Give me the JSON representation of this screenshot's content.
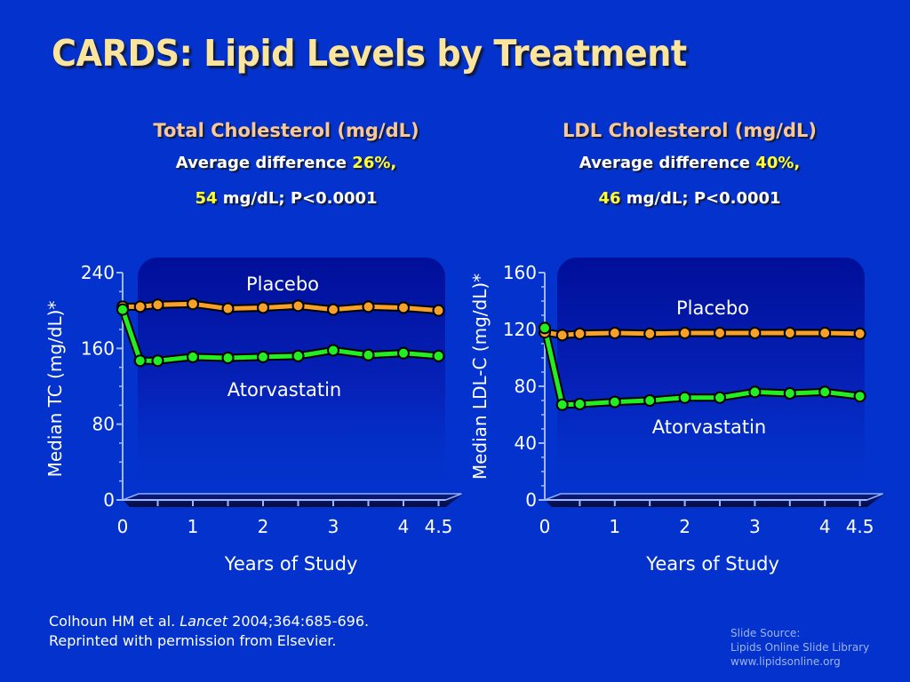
{
  "slide": {
    "title": "CARDS: Lipid Levels by Treatment",
    "citation": {
      "authors": "Colhoun HM et al.",
      "journal": "Lancet",
      "ref": "2004;364:685-696.",
      "line2": "Reprinted with permission from Elsevier."
    },
    "source": {
      "line1": "Slide Source:",
      "line2": "Lipids Online Slide Library",
      "line3": "www.lipidsonline.org"
    }
  },
  "panels": [
    {
      "heading": "Total Cholesterol (mg/dL)",
      "line1_prefix": "Average difference",
      "line1_value": "26%,",
      "line2_value": "54",
      "line2_suffix": "mg/dL; P<0.0001"
    },
    {
      "heading": "LDL Cholesterol (mg/dL)",
      "line1_prefix": "Average difference",
      "line1_value": "40%,",
      "line2_value": "46",
      "line2_suffix": "mg/dL; P<0.0001"
    }
  ],
  "colors": {
    "placebo": "#f7a12a",
    "atorvastatin": "#22ee22",
    "background": "#0333cc",
    "panel": "#0011aa"
  },
  "chart_data": [
    {
      "type": "line",
      "title": "Total Cholesterol (mg/dL)",
      "xlabel": "Years of Study",
      "ylabel": "Median TC (mg/dL)*",
      "ylim": [
        0,
        240
      ],
      "yticks": [
        0,
        80,
        160,
        240
      ],
      "xlim": [
        0,
        4.5
      ],
      "xticks": [
        0,
        1,
        2,
        3,
        4,
        4.5
      ],
      "x": [
        0,
        0.25,
        0.5,
        1,
        1.5,
        2,
        2.5,
        3,
        3.5,
        4,
        4.5
      ],
      "series": [
        {
          "name": "Placebo",
          "values": [
            204,
            204,
            206,
            207,
            202,
            203,
            205,
            201,
            204,
            203,
            200
          ]
        },
        {
          "name": "Atorvastatin",
          "values": [
            201,
            147,
            147,
            151,
            150,
            151,
            152,
            158,
            153,
            155,
            152
          ]
        }
      ],
      "series_labels": [
        "Placebo",
        "Atorvastatin"
      ],
      "grid": false
    },
    {
      "type": "line",
      "title": "LDL Cholesterol (mg/dL)",
      "xlabel": "Years of Study",
      "ylabel": "Median LDL-C (mg/dL)*",
      "ylim": [
        0,
        160
      ],
      "yticks": [
        0,
        40,
        80,
        120,
        160
      ],
      "xlim": [
        0,
        4.5
      ],
      "xticks": [
        0,
        1,
        2,
        3,
        4,
        4.5
      ],
      "x": [
        0,
        0.25,
        0.5,
        1,
        1.5,
        2,
        2.5,
        3,
        3.5,
        4,
        4.5
      ],
      "series": [
        {
          "name": "Placebo",
          "values": [
            118,
            116,
            117,
            117.5,
            117,
            117.5,
            117.5,
            117.5,
            117.5,
            117.5,
            117
          ]
        },
        {
          "name": "Atorvastatin",
          "values": [
            121,
            67,
            67.5,
            69,
            70,
            72,
            72,
            76,
            75,
            76,
            73
          ]
        }
      ],
      "series_labels": [
        "Placebo",
        "Atorvastatin"
      ],
      "grid": false
    }
  ]
}
